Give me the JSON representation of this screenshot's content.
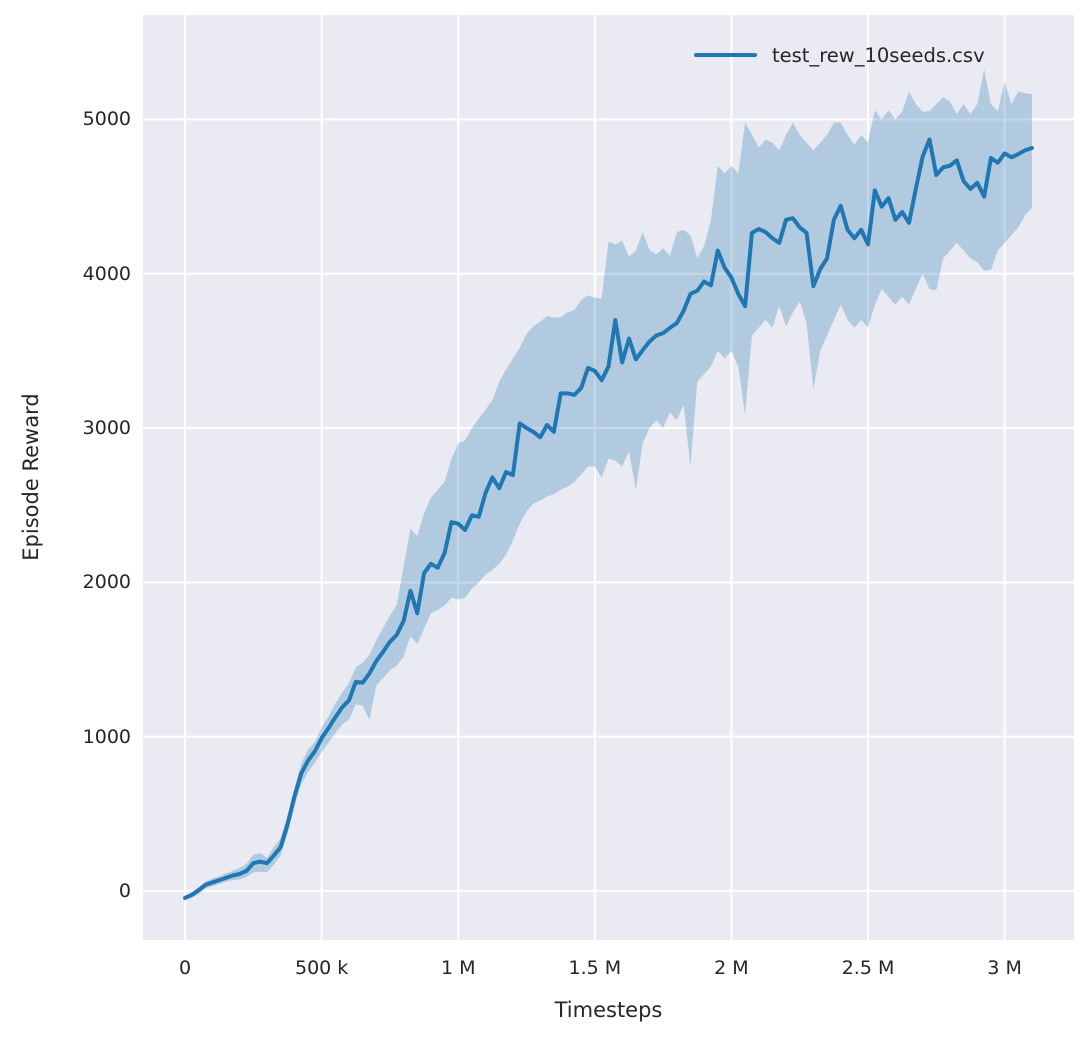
{
  "colors": {
    "figure_background": "#ffffff",
    "plot_background": "#eaeaf2",
    "grid": "#ffffff",
    "text": "#262626",
    "series": "#1f77b4",
    "band_fill": "rgba(31,119,180,0.28)"
  },
  "chart_data": {
    "type": "line",
    "title": "",
    "xlabel": "Timesteps",
    "ylabel": "Episode Reward",
    "grid": true,
    "legend_position": "upper right",
    "legend": [
      {
        "label": "test_rew_10seeds.csv",
        "color": "#1f77b4"
      }
    ],
    "xlim": [
      -154000,
      3254000
    ],
    "ylim": [
      -318,
      5677
    ],
    "x_ticks": [
      {
        "v": 0,
        "label": "0"
      },
      {
        "v": 500000,
        "label": "500 k"
      },
      {
        "v": 1000000,
        "label": "1 M"
      },
      {
        "v": 1500000,
        "label": "1.5 M"
      },
      {
        "v": 2000000,
        "label": "2 M"
      },
      {
        "v": 2500000,
        "label": "2.5 M"
      },
      {
        "v": 3000000,
        "label": "3 M"
      }
    ],
    "y_ticks": [
      {
        "v": 0,
        "label": "0"
      },
      {
        "v": 1000,
        "label": "1000"
      },
      {
        "v": 2000,
        "label": "2000"
      },
      {
        "v": 3000,
        "label": "3000"
      },
      {
        "v": 4000,
        "label": "4000"
      },
      {
        "v": 5000,
        "label": "5000"
      }
    ],
    "x_multiplier": 1000,
    "series": [
      {
        "name": "test_rew_10seeds.csv",
        "color": "#1f77b4",
        "band_alpha": 0.28,
        "x_k": [
          0,
          25,
          50,
          75,
          100,
          125,
          150,
          175,
          200,
          225,
          250,
          275,
          300,
          325,
          350,
          375,
          400,
          425,
          450,
          475,
          500,
          525,
          550,
          575,
          600,
          625,
          650,
          675,
          700,
          725,
          750,
          775,
          800,
          825,
          850,
          875,
          900,
          925,
          950,
          975,
          1000,
          1025,
          1050,
          1075,
          1100,
          1125,
          1150,
          1175,
          1200,
          1225,
          1250,
          1275,
          1300,
          1325,
          1350,
          1375,
          1400,
          1425,
          1450,
          1475,
          1500,
          1525,
          1550,
          1575,
          1600,
          1625,
          1650,
          1675,
          1700,
          1725,
          1750,
          1775,
          1800,
          1825,
          1850,
          1875,
          1900,
          1925,
          1950,
          1975,
          2000,
          2025,
          2050,
          2075,
          2100,
          2125,
          2150,
          2175,
          2200,
          2225,
          2250,
          2275,
          2300,
          2325,
          2350,
          2375,
          2400,
          2425,
          2450,
          2475,
          2500,
          2525,
          2550,
          2575,
          2600,
          2625,
          2650,
          2675,
          2700,
          2725,
          2750,
          2775,
          2800,
          2825,
          2850,
          2875,
          2900,
          2925,
          2950,
          2975,
          3000,
          3025,
          3050,
          3075,
          3100
        ],
        "mean": [
          -45,
          -25,
          5,
          40,
          55,
          70,
          85,
          100,
          110,
          130,
          180,
          190,
          180,
          230,
          285,
          430,
          610,
          760,
          845,
          905,
          990,
          1055,
          1125,
          1190,
          1235,
          1355,
          1350,
          1410,
          1490,
          1550,
          1615,
          1660,
          1750,
          1945,
          1800,
          2060,
          2120,
          2095,
          2190,
          2390,
          2380,
          2340,
          2435,
          2425,
          2580,
          2680,
          2610,
          2715,
          2695,
          3030,
          3000,
          2975,
          2940,
          3020,
          2975,
          3225,
          3225,
          3215,
          3260,
          3390,
          3370,
          3310,
          3400,
          3700,
          3425,
          3580,
          3445,
          3505,
          3560,
          3600,
          3615,
          3650,
          3680,
          3760,
          3870,
          3890,
          3950,
          3925,
          4150,
          4040,
          3975,
          3870,
          3790,
          4265,
          4290,
          4270,
          4230,
          4200,
          4350,
          4360,
          4300,
          4265,
          3920,
          4030,
          4100,
          4350,
          4440,
          4285,
          4230,
          4285,
          4190,
          4540,
          4435,
          4490,
          4350,
          4400,
          4330,
          4550,
          4760,
          4870,
          4640,
          4690,
          4700,
          4735,
          4600,
          4550,
          4590,
          4500,
          4750,
          4720,
          4780,
          4755,
          4775,
          4800,
          4815
        ],
        "lower": [
          -55,
          -45,
          -20,
          15,
          30,
          45,
          60,
          70,
          75,
          90,
          120,
          125,
          120,
          170,
          230,
          370,
          545,
          690,
          770,
          830,
          900,
          960,
          1020,
          1080,
          1110,
          1210,
          1200,
          1110,
          1330,
          1380,
          1430,
          1460,
          1520,
          1650,
          1600,
          1700,
          1800,
          1820,
          1850,
          1900,
          1890,
          1900,
          1960,
          2000,
          2050,
          2080,
          2120,
          2180,
          2270,
          2380,
          2460,
          2510,
          2530,
          2555,
          2570,
          2600,
          2620,
          2650,
          2700,
          2750,
          2750,
          2680,
          2800,
          2790,
          2750,
          2850,
          2600,
          2900,
          3000,
          3050,
          3000,
          3100,
          3050,
          3150,
          2750,
          3300,
          3350,
          3400,
          3500,
          3450,
          3500,
          3400,
          3085,
          3600,
          3650,
          3700,
          3650,
          3790,
          3660,
          3750,
          3820,
          3680,
          3250,
          3500,
          3600,
          3700,
          3800,
          3700,
          3650,
          3700,
          3650,
          3800,
          3900,
          3850,
          3800,
          3850,
          3800,
          3900,
          4000,
          3900,
          3895,
          4100,
          4150,
          4200,
          4150,
          4100,
          4075,
          4020,
          4025,
          4150,
          4200,
          4250,
          4300,
          4380,
          4425
        ],
        "upper": [
          -35,
          -5,
          25,
          60,
          80,
          95,
          115,
          130,
          150,
          175,
          235,
          245,
          215,
          285,
          345,
          490,
          665,
          825,
          915,
          965,
          1060,
          1130,
          1215,
          1285,
          1345,
          1450,
          1480,
          1530,
          1625,
          1705,
          1785,
          1855,
          2100,
          2350,
          2300,
          2450,
          2550,
          2600,
          2650,
          2800,
          2900,
          2920,
          3000,
          3060,
          3120,
          3180,
          3300,
          3380,
          3450,
          3520,
          3610,
          3660,
          3690,
          3725,
          3715,
          3720,
          3750,
          3765,
          3830,
          3860,
          3845,
          3840,
          4210,
          4190,
          4215,
          4110,
          4150,
          4270,
          4155,
          4125,
          4165,
          4115,
          4270,
          4285,
          4250,
          4100,
          4180,
          4350,
          4700,
          4650,
          4700,
          4650,
          4980,
          4900,
          4820,
          4870,
          4850,
          4800,
          4900,
          4980,
          4900,
          4850,
          4800,
          4850,
          4900,
          4980,
          4980,
          4900,
          4835,
          4900,
          4850,
          5060,
          5000,
          5060,
          5000,
          5050,
          5180,
          5100,
          5050,
          5055,
          5100,
          5145,
          5115,
          5035,
          5100,
          5035,
          5100,
          5325,
          5100,
          5055,
          5245,
          5100,
          5180,
          5170,
          5165
        ]
      }
    ]
  }
}
